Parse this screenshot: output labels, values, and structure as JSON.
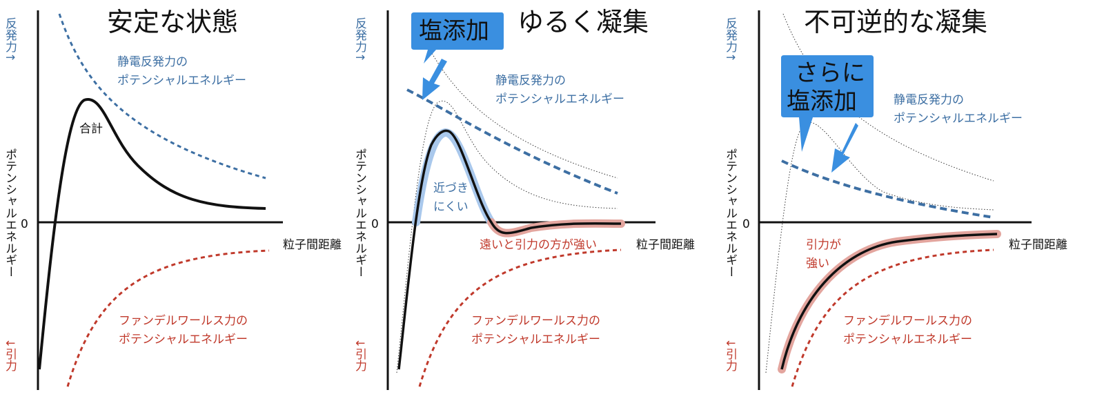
{
  "panels": [
    {
      "title": "安定な状態",
      "y_axis_top": "反発力↑",
      "y_axis_middle": "ポテンシャルエネルギー",
      "y_axis_bottom": "↓引力",
      "zero_label": "0",
      "x_axis_label": "粒子間距離",
      "electrostatic_label": [
        "静電反発力の",
        "ポテンシャルエネルギー"
      ],
      "vdw_label": [
        "ファンデルワールス力の",
        "ポテンシャルエネルギー"
      ],
      "total_label": "合計"
    },
    {
      "title": "ゆるく凝集",
      "callout": [
        "塩添加"
      ],
      "y_axis_top": "反発力↑",
      "y_axis_middle": "ポテンシャルエネルギー",
      "y_axis_bottom": "↓引力",
      "zero_label": "0",
      "x_axis_label": "粒子間距離",
      "electrostatic_label": [
        "静電反発力の",
        "ポテンシャルエネルギー"
      ],
      "vdw_label": [
        "ファンデルワールス力の",
        "ポテンシャルエネルギー"
      ],
      "barrier_label": [
        "近づき",
        "にくい"
      ],
      "far_label": "遠いと引力の方が強い"
    },
    {
      "title": "不可逆的な凝集",
      "callout": [
        "さらに",
        "塩添加"
      ],
      "y_axis_top": "反発力↑",
      "y_axis_middle": "ポテンシャルエネルギー",
      "y_axis_bottom": "↓引力",
      "zero_label": "0",
      "x_axis_label": "粒子間距離",
      "electrostatic_label": [
        "静電反発力の",
        "ポテンシャルエネルギー"
      ],
      "vdw_label": [
        "ファンデルワールス力の",
        "ポテンシャルエネルギー"
      ],
      "attraction_label": [
        "引力が",
        "強い"
      ]
    }
  ],
  "colors": {
    "electrostatic": "#3d6fa3",
    "vdw": "#c0392b",
    "total": "#111111",
    "callout_fill": "#3a8fe0",
    "highlight_blue": "#a9c8ec",
    "highlight_red": "#e3a59e"
  }
}
